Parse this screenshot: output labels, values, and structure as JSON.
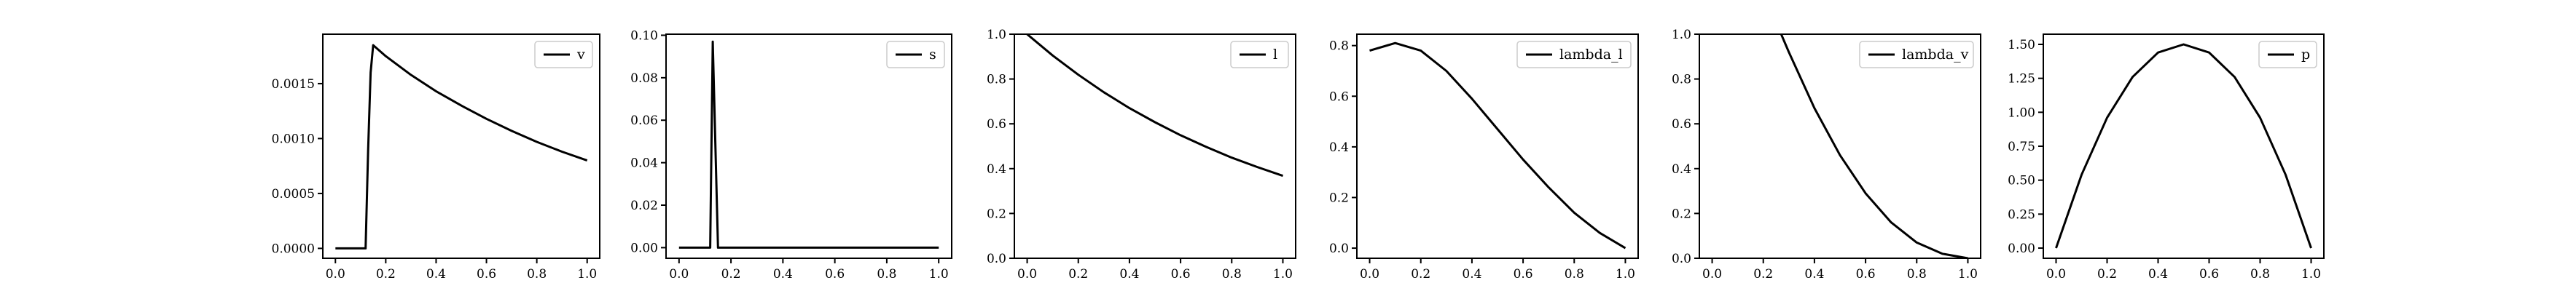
{
  "chart_data": [
    {
      "type": "line",
      "legend": "v",
      "legend_position": "top-right",
      "grid": false,
      "xlim": [
        -0.05,
        1.05
      ],
      "ylim": [
        -9e-05,
        0.00195
      ],
      "xticks": [
        0.0,
        0.2,
        0.4,
        0.6,
        0.8,
        1.0
      ],
      "xtick_labels": [
        "0.0",
        "0.2",
        "0.4",
        "0.6",
        "0.8",
        "1.0"
      ],
      "yticks": [
        0.0,
        0.0005,
        0.001,
        0.0015
      ],
      "ytick_labels": [
        "0.0000",
        "0.0005",
        "0.0010",
        "0.0015"
      ],
      "x": [
        0,
        0.05,
        0.1,
        0.12,
        0.13,
        0.14,
        0.15,
        0.2,
        0.3,
        0.4,
        0.5,
        0.6,
        0.7,
        0.8,
        0.9,
        1.0
      ],
      "y": [
        0,
        0,
        0,
        0,
        0.0009,
        0.0016,
        0.00185,
        0.00175,
        0.00158,
        0.00143,
        0.0013,
        0.00118,
        0.00107,
        0.00097,
        0.00088,
        0.0008
      ]
    },
    {
      "type": "line",
      "legend": "s",
      "legend_position": "top-right",
      "grid": false,
      "xlim": [
        -0.05,
        1.05
      ],
      "ylim": [
        -0.005,
        0.1005
      ],
      "xticks": [
        0.0,
        0.2,
        0.4,
        0.6,
        0.8,
        1.0
      ],
      "xtick_labels": [
        "0.0",
        "0.2",
        "0.4",
        "0.6",
        "0.8",
        "1.0"
      ],
      "yticks": [
        0.0,
        0.02,
        0.04,
        0.06,
        0.08,
        0.1
      ],
      "ytick_labels": [
        "0.00",
        "0.02",
        "0.04",
        "0.06",
        "0.08",
        "0.10"
      ],
      "x": [
        0,
        0.1,
        0.12,
        0.13,
        0.15,
        0.2,
        0.4,
        0.6,
        0.8,
        1.0
      ],
      "y": [
        0,
        0,
        0,
        0.097,
        0,
        0,
        0,
        0,
        0,
        0
      ]
    },
    {
      "type": "line",
      "legend": "l",
      "legend_position": "top-right",
      "grid": false,
      "xlim": [
        -0.05,
        1.05
      ],
      "ylim": [
        0.0,
        1.0
      ],
      "xticks": [
        0.0,
        0.2,
        0.4,
        0.6,
        0.8,
        1.0
      ],
      "xtick_labels": [
        "0.0",
        "0.2",
        "0.4",
        "0.6",
        "0.8",
        "1.0"
      ],
      "yticks": [
        0.0,
        0.2,
        0.4,
        0.6,
        0.8,
        1.0
      ],
      "ytick_labels": [
        "0.0",
        "0.2",
        "0.4",
        "0.6",
        "0.8",
        "1.0"
      ],
      "x": [
        0,
        0.1,
        0.2,
        0.3,
        0.4,
        0.5,
        0.6,
        0.7,
        0.8,
        0.9,
        1.0
      ],
      "y": [
        1.0,
        0.905,
        0.819,
        0.741,
        0.67,
        0.607,
        0.549,
        0.497,
        0.449,
        0.407,
        0.368
      ]
    },
    {
      "type": "line",
      "legend": "lambda_l",
      "legend_position": "top-right",
      "grid": false,
      "xlim": [
        -0.05,
        1.05
      ],
      "ylim": [
        -0.04,
        0.845
      ],
      "xticks": [
        0.0,
        0.2,
        0.4,
        0.6,
        0.8,
        1.0
      ],
      "xtick_labels": [
        "0.0",
        "0.2",
        "0.4",
        "0.6",
        "0.8",
        "1.0"
      ],
      "yticks": [
        0.0,
        0.2,
        0.4,
        0.6,
        0.8
      ],
      "ytick_labels": [
        "0.0",
        "0.2",
        "0.4",
        "0.6",
        "0.8"
      ],
      "x": [
        0,
        0.1,
        0.2,
        0.3,
        0.4,
        0.5,
        0.6,
        0.7,
        0.8,
        0.9,
        1.0
      ],
      "y": [
        0.78,
        0.81,
        0.78,
        0.7,
        0.59,
        0.47,
        0.35,
        0.24,
        0.14,
        0.06,
        0.0
      ]
    },
    {
      "type": "line",
      "legend": "lambda_v",
      "legend_position": "top-right",
      "grid": false,
      "xlim": [
        -0.05,
        1.05
      ],
      "ylim": [
        0.0,
        1.0
      ],
      "xticks": [
        0.0,
        0.2,
        0.4,
        0.6,
        0.8,
        1.0
      ],
      "xtick_labels": [
        "0.0",
        "0.2",
        "0.4",
        "0.6",
        "0.8",
        "1.0"
      ],
      "yticks": [
        0.0,
        0.2,
        0.4,
        0.6,
        0.8,
        1.0
      ],
      "ytick_labels": [
        "0.0",
        "0.2",
        "0.4",
        "0.6",
        "0.8",
        "1.0"
      ],
      "x": [
        0.27,
        0.3,
        0.4,
        0.5,
        0.6,
        0.7,
        0.8,
        0.9,
        1.0
      ],
      "y": [
        1.0,
        0.92,
        0.67,
        0.46,
        0.29,
        0.16,
        0.07,
        0.02,
        0.0
      ]
    },
    {
      "type": "line",
      "legend": "p",
      "legend_position": "top-right",
      "grid": false,
      "xlim": [
        -0.05,
        1.05
      ],
      "ylim": [
        -0.075,
        1.575
      ],
      "xticks": [
        0.0,
        0.2,
        0.4,
        0.6,
        0.8,
        1.0
      ],
      "xtick_labels": [
        "0.0",
        "0.2",
        "0.4",
        "0.6",
        "0.8",
        "1.0"
      ],
      "yticks": [
        0.0,
        0.25,
        0.5,
        0.75,
        1.0,
        1.25,
        1.5
      ],
      "ytick_labels": [
        "0.00",
        "0.25",
        "0.50",
        "0.75",
        "1.00",
        "1.25",
        "1.50"
      ],
      "x": [
        0,
        0.1,
        0.2,
        0.3,
        0.4,
        0.5,
        0.6,
        0.7,
        0.8,
        0.9,
        1.0
      ],
      "y": [
        0,
        0.54,
        0.96,
        1.26,
        1.44,
        1.5,
        1.44,
        1.26,
        0.96,
        0.54,
        0
      ]
    }
  ]
}
